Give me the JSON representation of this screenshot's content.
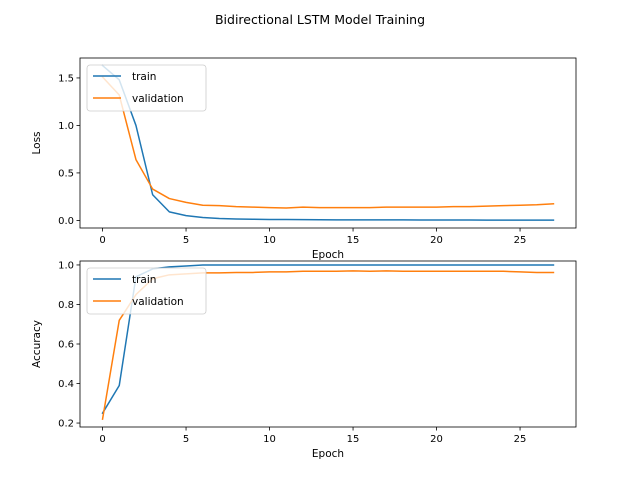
{
  "chart_data": {
    "title": "Bidirectional LSTM Model Training",
    "series_colors": {
      "train": "#1f77b4",
      "validation": "#ff7f0e"
    },
    "charts": [
      {
        "type": "line",
        "xlabel": "Epoch",
        "ylabel": "Loss",
        "xlim": [
          -1.35,
          28.35
        ],
        "ylim": [
          -0.08,
          1.71
        ],
        "xticks": [
          "0",
          "5",
          "10",
          "15",
          "20",
          "25"
        ],
        "xtick_values": [
          0,
          5,
          10,
          15,
          20,
          25
        ],
        "yticks": [
          "0.0",
          "0.5",
          "1.0",
          "1.5"
        ],
        "ytick_values": [
          0,
          0.5,
          1.0,
          1.5
        ],
        "legend_position": "upper left",
        "grid": false,
        "x": [
          0,
          1,
          2,
          3,
          4,
          5,
          6,
          7,
          8,
          9,
          10,
          11,
          12,
          13,
          14,
          15,
          16,
          17,
          18,
          19,
          20,
          21,
          22,
          23,
          24,
          25,
          26,
          27
        ],
        "series": [
          {
            "name": "train",
            "values": [
              1.63,
              1.48,
              1.0,
              0.27,
              0.09,
              0.05,
              0.03,
              0.02,
              0.015,
              0.012,
              0.01,
              0.009,
              0.008,
              0.007,
              0.006,
              0.006,
              0.005,
              0.005,
              0.005,
              0.004,
              0.004,
              0.004,
              0.004,
              0.003,
              0.003,
              0.003,
              0.003,
              0.003
            ]
          },
          {
            "name": "validation",
            "values": [
              1.51,
              1.32,
              0.64,
              0.33,
              0.23,
              0.19,
              0.16,
              0.155,
              0.145,
              0.14,
              0.135,
              0.13,
              0.14,
              0.135,
              0.135,
              0.135,
              0.135,
              0.14,
              0.14,
              0.14,
              0.14,
              0.145,
              0.145,
              0.15,
              0.155,
              0.16,
              0.165,
              0.175
            ]
          }
        ]
      },
      {
        "type": "line",
        "xlabel": "Epoch",
        "ylabel": "Accuracy",
        "xlim": [
          -1.35,
          28.35
        ],
        "ylim": [
          0.18,
          1.02
        ],
        "xticks": [
          "0",
          "5",
          "10",
          "15",
          "20",
          "25"
        ],
        "xtick_values": [
          0,
          5,
          10,
          15,
          20,
          25
        ],
        "yticks": [
          "0.2",
          "0.4",
          "0.6",
          "0.8",
          "1.0"
        ],
        "ytick_values": [
          0.2,
          0.4,
          0.6,
          0.8,
          1.0
        ],
        "legend_position": "upper left",
        "grid": false,
        "x": [
          0,
          1,
          2,
          3,
          4,
          5,
          6,
          7,
          8,
          9,
          10,
          11,
          12,
          13,
          14,
          15,
          16,
          17,
          18,
          19,
          20,
          21,
          22,
          23,
          24,
          25,
          26,
          27
        ],
        "series": [
          {
            "name": "train",
            "values": [
              0.25,
              0.39,
              0.94,
              0.98,
              0.99,
              0.995,
              1.0,
              1.0,
              1.0,
              1.0,
              1.0,
              1.0,
              1.0,
              1.0,
              1.0,
              1.0,
              1.0,
              1.0,
              1.0,
              1.0,
              1.0,
              1.0,
              1.0,
              1.0,
              1.0,
              1.0,
              1.0,
              1.0
            ]
          },
          {
            "name": "validation",
            "values": [
              0.22,
              0.72,
              0.85,
              0.93,
              0.95,
              0.955,
              0.96,
              0.96,
              0.962,
              0.962,
              0.965,
              0.965,
              0.968,
              0.968,
              0.968,
              0.97,
              0.968,
              0.97,
              0.968,
              0.968,
              0.968,
              0.968,
              0.968,
              0.968,
              0.968,
              0.965,
              0.962,
              0.962
            ]
          }
        ]
      }
    ]
  }
}
